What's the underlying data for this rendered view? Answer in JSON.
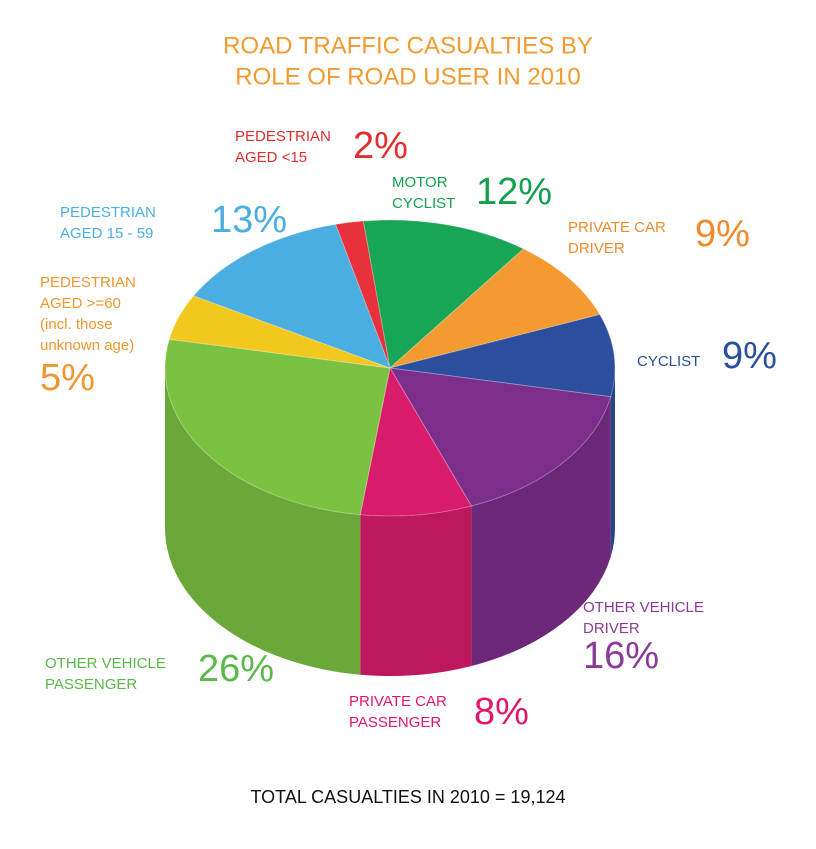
{
  "chart_data": {
    "type": "pie",
    "title": [
      "ROAD TRAFFIC CASUALTIES BY",
      "ROLE OF ROAD USER IN 2010"
    ],
    "categories": [
      [
        "PEDESTRIAN",
        "AGED <15"
      ],
      [
        "MOTOR",
        "CYCLIST"
      ],
      [
        "PRIVATE CAR",
        "DRIVER"
      ],
      [
        "CYCLIST"
      ],
      [
        "OTHER VEHICLE",
        "DRIVER"
      ],
      [
        "PRIVATE CAR",
        "PASSENGER"
      ],
      [
        "OTHER VEHICLE",
        "PASSENGER"
      ],
      [
        "PEDESTRIAN",
        "AGED >=60",
        "(incl. those",
        "unknown age)"
      ],
      [
        "PEDESTRIAN",
        "AGED 15 - 59"
      ]
    ],
    "values": [
      2,
      12,
      9,
      9,
      16,
      8,
      26,
      5,
      13
    ],
    "value_labels": [
      "2%",
      "12%",
      "9%",
      "9%",
      "16%",
      "8%",
      "26%",
      "5%",
      "13%"
    ],
    "colors": [
      "#e8313a",
      "#18a556",
      "#f39a30",
      "#2b4f9e",
      "#7b2f8b",
      "#d91b6b",
      "#7cc242",
      "#f2c81e",
      "#4aaee0"
    ],
    "label_colors": [
      "#e32d2d",
      "#13a04f",
      "#f08a2b",
      "#2a4f9e",
      "#8a3b99",
      "#e0186a",
      "#5bb84a",
      "#f0962f",
      "#4aaee0"
    ],
    "footnote": "TOTAL CASUALTIES IN 2010 = 19,124"
  }
}
